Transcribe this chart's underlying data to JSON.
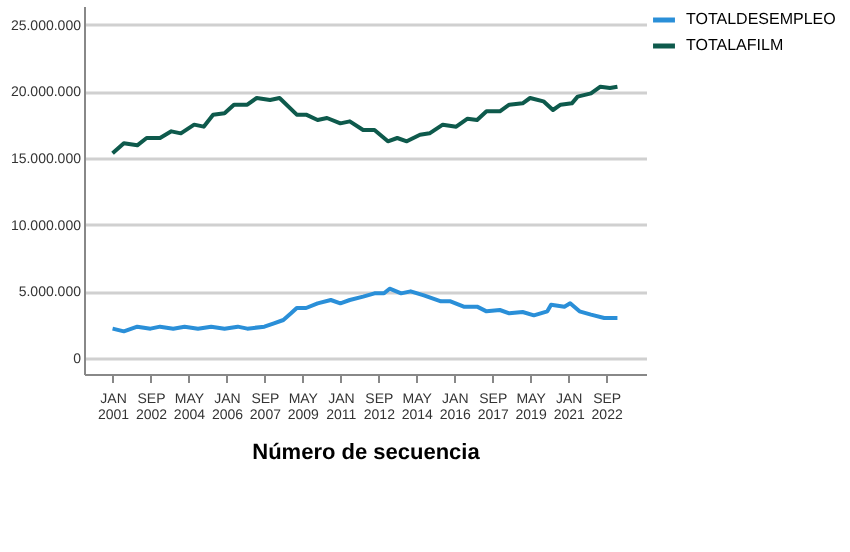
{
  "chart_data": {
    "type": "line",
    "xlabel": "Número de secuencia",
    "xlim": [
      "1999-10",
      "2024-06"
    ],
    "xticks": [
      {
        "value": "2001-01",
        "label": "JAN 2001"
      },
      {
        "value": "2002-09",
        "label": "SEP 2002"
      },
      {
        "value": "2004-05",
        "label": "MAY 2004"
      },
      {
        "value": "2006-01",
        "label": "JAN 2006"
      },
      {
        "value": "2007-09",
        "label": "SEP 2007"
      },
      {
        "value": "2009-05",
        "label": "MAY 2009"
      },
      {
        "value": "2011-01",
        "label": "JAN 2011"
      },
      {
        "value": "2012-09",
        "label": "SEP 2012"
      },
      {
        "value": "2014-05",
        "label": "MAY 2014"
      },
      {
        "value": "2016-01",
        "label": "JAN 2016"
      },
      {
        "value": "2017-09",
        "label": "SEP 2017"
      },
      {
        "value": "2019-05",
        "label": "MAY 2019"
      },
      {
        "value": "2021-01",
        "label": "JAN 2021"
      },
      {
        "value": "2022-09",
        "label": "SEP 2022"
      }
    ],
    "ylim": [
      -1200000,
      26400000
    ],
    "yticks": [
      {
        "value": 0,
        "label": "0"
      },
      {
        "value": 5000000,
        "label": "5.000.000"
      },
      {
        "value": 10000000,
        "label": "10.000.000"
      },
      {
        "value": 15000000,
        "label": "15.000.000"
      },
      {
        "value": 20000000,
        "label": "20.000.000"
      },
      {
        "value": 25000000,
        "label": "25.000.000"
      }
    ],
    "grid": "y",
    "legend": "top right",
    "marker": "none",
    "line_style": "solid",
    "series": [
      {
        "name": "TOTALDESEMPLEO",
        "color": "#2a8fd8",
        "x": [
          "2001-01",
          "2001-07",
          "2002-02",
          "2002-09",
          "2003-02",
          "2003-09",
          "2004-03",
          "2004-10",
          "2005-05",
          "2005-12",
          "2006-07",
          "2006-12",
          "2007-09",
          "2008-02",
          "2008-07",
          "2008-11",
          "2009-02",
          "2009-07",
          "2010-01",
          "2010-08",
          "2011-01",
          "2011-06",
          "2012-01",
          "2012-07",
          "2012-12",
          "2013-03",
          "2013-09",
          "2014-02",
          "2014-09",
          "2015-06",
          "2015-11",
          "2016-06",
          "2017-01",
          "2017-06",
          "2018-01",
          "2018-06",
          "2019-01",
          "2019-07",
          "2020-02",
          "2020-04",
          "2020-11",
          "2021-02",
          "2021-07",
          "2022-01",
          "2022-08",
          "2023-03"
        ],
        "values": [
          2200000,
          2000000,
          2350000,
          2200000,
          2350000,
          2200000,
          2350000,
          2200000,
          2350000,
          2200000,
          2350000,
          2200000,
          2350000,
          2600000,
          2850000,
          3350000,
          3750000,
          3750000,
          4100000,
          4350000,
          4100000,
          4350000,
          4600000,
          4850000,
          4850000,
          5200000,
          4850000,
          5000000,
          4700000,
          4250000,
          4250000,
          3850000,
          3850000,
          3500000,
          3600000,
          3350000,
          3450000,
          3200000,
          3500000,
          4000000,
          3850000,
          4100000,
          3500000,
          3250000,
          3000000,
          3000000
        ]
      },
      {
        "name": "TOTALAFILM",
        "color": "#0e5a4c",
        "x": [
          "2001-01",
          "2001-07",
          "2002-02",
          "2002-07",
          "2003-02",
          "2003-08",
          "2004-01",
          "2004-08",
          "2005-01",
          "2005-06",
          "2005-12",
          "2006-05",
          "2006-12",
          "2007-05",
          "2007-12",
          "2008-05",
          "2009-02",
          "2009-07",
          "2010-01",
          "2010-06",
          "2011-01",
          "2011-06",
          "2012-01",
          "2012-07",
          "2013-02",
          "2013-07",
          "2013-12",
          "2014-07",
          "2014-12",
          "2015-07",
          "2016-02",
          "2016-08",
          "2017-01",
          "2017-06",
          "2018-01",
          "2018-06",
          "2019-01",
          "2019-05",
          "2019-12",
          "2020-05",
          "2020-09",
          "2021-03",
          "2021-06",
          "2022-01",
          "2022-06",
          "2022-11",
          "2023-03"
        ],
        "values": [
          15350000,
          16100000,
          15950000,
          16500000,
          16500000,
          17000000,
          16850000,
          17500000,
          17350000,
          18250000,
          18350000,
          19000000,
          19000000,
          19500000,
          19350000,
          19500000,
          18250000,
          18250000,
          17850000,
          18000000,
          17600000,
          17750000,
          17100000,
          17100000,
          16250000,
          16500000,
          16250000,
          16750000,
          16850000,
          17500000,
          17350000,
          17950000,
          17850000,
          18500000,
          18500000,
          19000000,
          19100000,
          19500000,
          19250000,
          18600000,
          19000000,
          19100000,
          19600000,
          19850000,
          20350000,
          20250000,
          20350000
        ]
      }
    ]
  }
}
